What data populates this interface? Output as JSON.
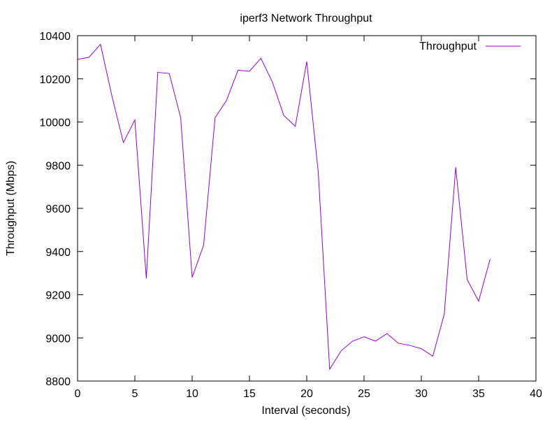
{
  "chart_data": {
    "type": "line",
    "title": "iperf3 Network Throughput",
    "xlabel": "Interval (seconds)",
    "ylabel": "Throughput (Mbps)",
    "xlim": [
      0,
      40
    ],
    "ylim": [
      8800,
      10400
    ],
    "xticks": [
      0,
      5,
      10,
      15,
      20,
      25,
      30,
      35,
      40
    ],
    "yticks": [
      8800,
      9000,
      9200,
      9400,
      9600,
      9800,
      10000,
      10200,
      10400
    ],
    "grid": false,
    "legend_position": "top-right",
    "series": [
      {
        "name": "Throughput",
        "color": "#9400d3",
        "x": [
          0,
          1,
          2,
          3,
          4,
          5,
          6,
          7,
          8,
          9,
          10,
          11,
          12,
          13,
          14,
          15,
          16,
          17,
          18,
          19,
          20,
          21,
          22,
          23,
          24,
          25,
          26,
          27,
          28,
          29,
          30,
          31,
          32,
          33,
          34,
          35,
          36
        ],
        "y": [
          10290,
          10300,
          10360,
          10120,
          9905,
          10010,
          9275,
          10230,
          10225,
          10020,
          9280,
          9430,
          10020,
          10100,
          10240,
          10235,
          10295,
          10185,
          10030,
          9980,
          10280,
          9770,
          8855,
          8940,
          8985,
          9005,
          8985,
          9020,
          8975,
          8965,
          8950,
          8915,
          9110,
          9790,
          9270,
          9170,
          9365
        ]
      }
    ]
  }
}
